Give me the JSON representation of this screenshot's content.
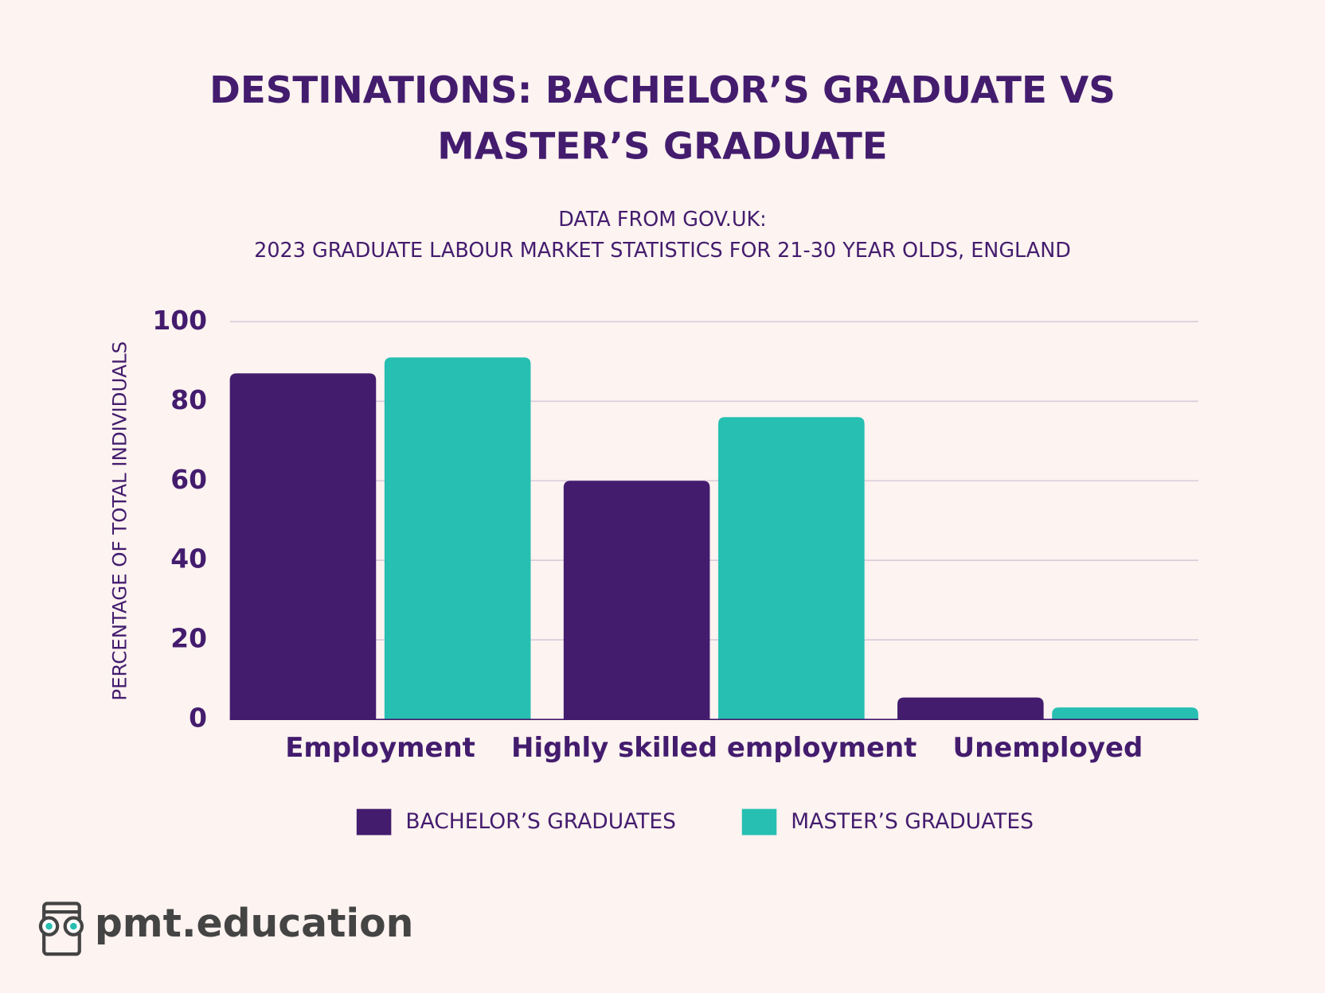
{
  "chart_data": {
    "type": "bar",
    "title": [
      "DESTINATIONS: BACHELOR’S GRADUATE VS",
      "MASTER’S GRADUATE"
    ],
    "subtitle": [
      "DATA FROM GOV.UK:",
      "2023 GRADUATE LABOUR MARKET STATISTICS FOR 21-30 YEAR OLDS, ENGLAND"
    ],
    "y_label": "PERCENTAGE OF TOTAL INDIVIDUALS",
    "categories": [
      "Employment",
      "Highly skilled employment",
      "Unemployed"
    ],
    "series": [
      {
        "name": "BACHELOR’S GRADUATES",
        "color": "#431c6e",
        "values": [
          87,
          60,
          5.5
        ]
      },
      {
        "name": "MASTER’S GRADUATES",
        "color": "#26bfb2",
        "values": [
          91,
          76,
          3
        ]
      }
    ],
    "ylim": [
      0,
      100
    ],
    "yticks": [
      0,
      20,
      40,
      60,
      80,
      100
    ],
    "grid": true
  },
  "brand": "pmt.education"
}
